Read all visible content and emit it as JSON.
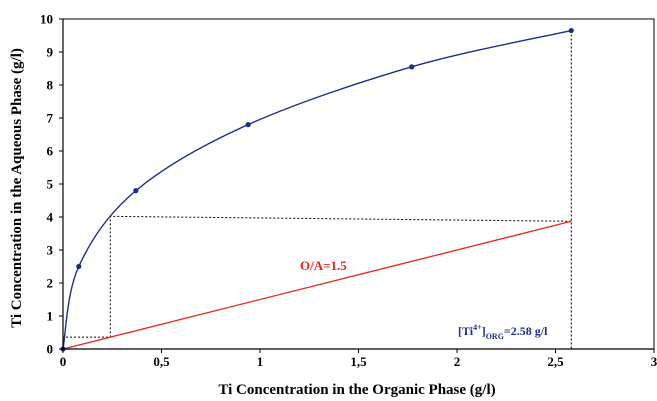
{
  "chart_data": {
    "type": "line",
    "title": "",
    "xlabel": "Ti Concentration in the Organic Phase (g/l)",
    "ylabel": "Ti Concentration in the Aqueous Phase (g/l)",
    "xlim": [
      0,
      3
    ],
    "ylim": [
      0,
      10
    ],
    "x_ticks": [
      0,
      0.5,
      1,
      1.5,
      2,
      2.5,
      3
    ],
    "x_tick_labels": [
      "0",
      "0,5",
      "1",
      "1,5",
      "2",
      "2,5",
      "3"
    ],
    "y_ticks": [
      0,
      1,
      2,
      3,
      4,
      5,
      6,
      7,
      8,
      9,
      10
    ],
    "y_tick_labels": [
      "0",
      "1",
      "2",
      "3",
      "4",
      "5",
      "6",
      "7",
      "8",
      "9",
      "10"
    ],
    "grid": false,
    "legend": "none",
    "series": [
      {
        "color": "#1f2d8a",
        "points": [
          {
            "x": 0,
            "y": 0
          },
          {
            "x": 0.08,
            "y": 2.5
          },
          {
            "x": 0.37,
            "y": 4.8
          },
          {
            "x": 0.94,
            "y": 6.8
          },
          {
            "x": 1.77,
            "y": 8.55
          },
          {
            "x": 2.58,
            "y": 9.65
          }
        ]
      }
    ],
    "operating_line": {
      "label": "O/A=1.5",
      "color": "#e8261f",
      "from": {
        "x": 0,
        "y": 0
      },
      "to": {
        "x": 2.58,
        "y": 3.87
      }
    },
    "stages": [
      {
        "x": 0.24,
        "y": 0.36
      },
      {
        "x": 0.24,
        "y": 4.02
      }
    ],
    "annotation": {
      "prefix": "[Ti",
      "superscript": "4+",
      "middle": "]",
      "subscript": "ORG",
      "suffix": "=2.58 g/l",
      "color": "#1f2d8a"
    }
  }
}
